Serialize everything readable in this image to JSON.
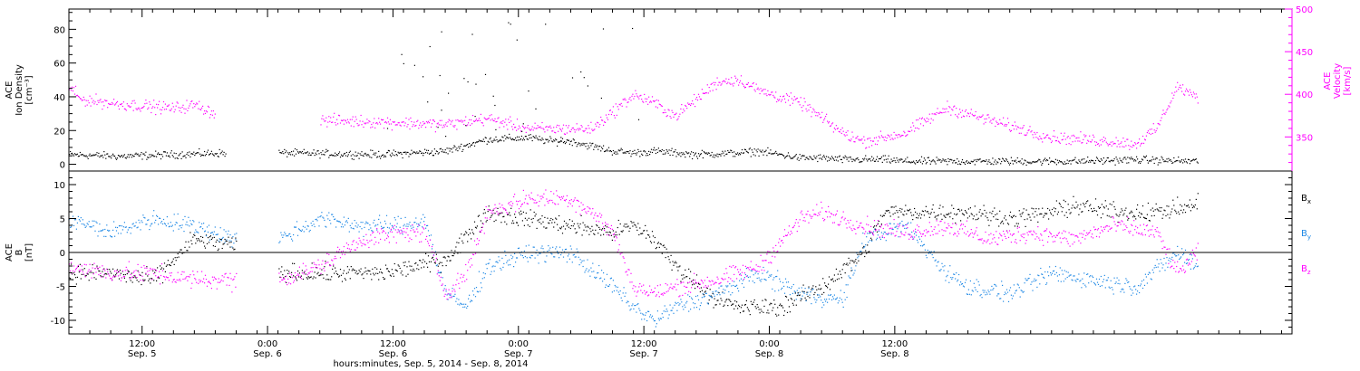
{
  "chart_data": [
    {
      "type": "scatter",
      "panel": "top",
      "ylabel_lines": [
        "ACE",
        "Ion Density",
        "[cm⁻³]"
      ],
      "y2label_lines": [
        "ACE",
        "Velocity",
        "[km/s]"
      ],
      "ylim": [
        -4,
        92
      ],
      "y2lim": [
        310,
        500
      ],
      "yticks": [
        0,
        20,
        40,
        60,
        80
      ],
      "y2ticks": [
        350,
        400,
        450,
        500
      ],
      "grid": false,
      "series": [
        {
          "axis": "left",
          "color": "#000000",
          "keypoints_hours": [
            0,
            5,
            10,
            15,
            18,
            20,
            30,
            36,
            40,
            44,
            46,
            48,
            52,
            54,
            56,
            60,
            64,
            66,
            70,
            72,
            74,
            76,
            78,
            80,
            82,
            86,
            90,
            96,
            102,
            108
          ],
          "values": [
            6,
            5,
            6,
            7,
            null,
            7,
            6,
            8,
            15,
            16,
            14,
            14,
            8,
            7,
            8,
            6,
            7,
            8,
            4,
            4,
            3,
            3,
            3,
            2,
            2,
            2,
            2,
            2,
            3,
            2
          ]
        },
        {
          "axis": "right",
          "color": "#ff00ff",
          "keypoints_hours": [
            0,
            1,
            4,
            8,
            10,
            12,
            14,
            18,
            24,
            30,
            36,
            40,
            44,
            46,
            50,
            52,
            54,
            56,
            58,
            62,
            64,
            66,
            70,
            74,
            76,
            80,
            84,
            88,
            94,
            100,
            102,
            104,
            106,
            108
          ],
          "values": [
            410,
            395,
            390,
            386,
            384,
            388,
            378,
            null,
            370,
            368,
            365,
            372,
            360,
            360,
            360,
            380,
            400,
            390,
            375,
            415,
            418,
            405,
            390,
            355,
            345,
            355,
            385,
            370,
            350,
            345,
            342,
            360,
            410,
            395
          ]
        }
      ]
    },
    {
      "type": "scatter",
      "panel": "bottom",
      "ylabel_lines": [
        "ACE",
        "B",
        "[nT]"
      ],
      "ylim": [
        -12,
        12
      ],
      "yticks": [
        -10,
        -5,
        0,
        5,
        10
      ],
      "zero_line": true,
      "grid": false,
      "legend_position": "right",
      "series": [
        {
          "name": "Bx",
          "name_main": "B",
          "name_sub": "x",
          "color": "#000000",
          "keypoints_hours": [
            0,
            4,
            8,
            12,
            16,
            18,
            20,
            24,
            30,
            36,
            40,
            44,
            48,
            52,
            54,
            56,
            58,
            62,
            64,
            68,
            72,
            76,
            78,
            82,
            86,
            90,
            94,
            96,
            100,
            104,
            108
          ],
          "values": [
            -3,
            -3,
            -4,
            2,
            1,
            null,
            -3,
            -3,
            -3,
            -1,
            6,
            5,
            4,
            3,
            4,
            2,
            -2,
            -7,
            -8,
            -8,
            -5,
            0,
            6,
            6,
            6,
            5,
            6,
            7,
            6,
            6,
            7
          ]
        },
        {
          "name": "By",
          "name_main": "B",
          "name_sub": "y",
          "color": "#1e88e5",
          "keypoints_hours": [
            0,
            4,
            6,
            8,
            12,
            16,
            18,
            20,
            24,
            28,
            32,
            34,
            36,
            38,
            40,
            44,
            48,
            52,
            54,
            56,
            58,
            62,
            66,
            70,
            74,
            76,
            80,
            84,
            86,
            90,
            94,
            98,
            102,
            106,
            108
          ],
          "values": [
            5,
            3,
            4,
            5,
            4,
            2,
            null,
            2,
            5,
            4,
            4,
            5,
            -6,
            -8,
            -2,
            0,
            0,
            -5,
            -8,
            -10,
            -8,
            -6,
            -3,
            -6,
            -7,
            2,
            4,
            -3,
            -5,
            -6,
            -3,
            -4,
            -5,
            0,
            -2
          ]
        },
        {
          "name": "Bz",
          "name_main": "B",
          "name_sub": "z",
          "color": "#ff00ff",
          "keypoints_hours": [
            0,
            4,
            8,
            12,
            16,
            18,
            20,
            24,
            28,
            32,
            34,
            36,
            38,
            40,
            44,
            48,
            50,
            52,
            54,
            56,
            58,
            62,
            66,
            70,
            72,
            76,
            80,
            84,
            88,
            92,
            96,
            100,
            104,
            106,
            108
          ],
          "values": [
            -2,
            -3,
            -3,
            -4,
            -4,
            null,
            -4,
            -2,
            2,
            3,
            3,
            -6,
            -3,
            6,
            8,
            8,
            6,
            3,
            -5,
            -6,
            -5,
            -4,
            -2,
            5,
            6,
            4,
            3,
            4,
            2,
            3,
            2,
            4,
            3,
            -3,
            0
          ]
        }
      ]
    }
  ],
  "x_axis": {
    "start_hour_offset": 7,
    "range_hours": [
      0,
      117
    ],
    "tick_spacing_hours": 12,
    "minor_tick_spacing_hours": 2,
    "tick_labels": [
      {
        "time": "12:00",
        "day": "Sep. 5"
      },
      {
        "time": "0:00",
        "day": "Sep. 6"
      },
      {
        "time": "12:00",
        "day": "Sep. 6"
      },
      {
        "time": "0:00",
        "day": "Sep. 7"
      },
      {
        "time": "12:00",
        "day": "Sep. 7"
      },
      {
        "time": "0:00",
        "day": "Sep. 8"
      },
      {
        "time": "12:00",
        "day": "Sep. 8"
      }
    ],
    "label": "hours:minutes, Sep.  5, 2014 - Sep.  8, 2014"
  }
}
